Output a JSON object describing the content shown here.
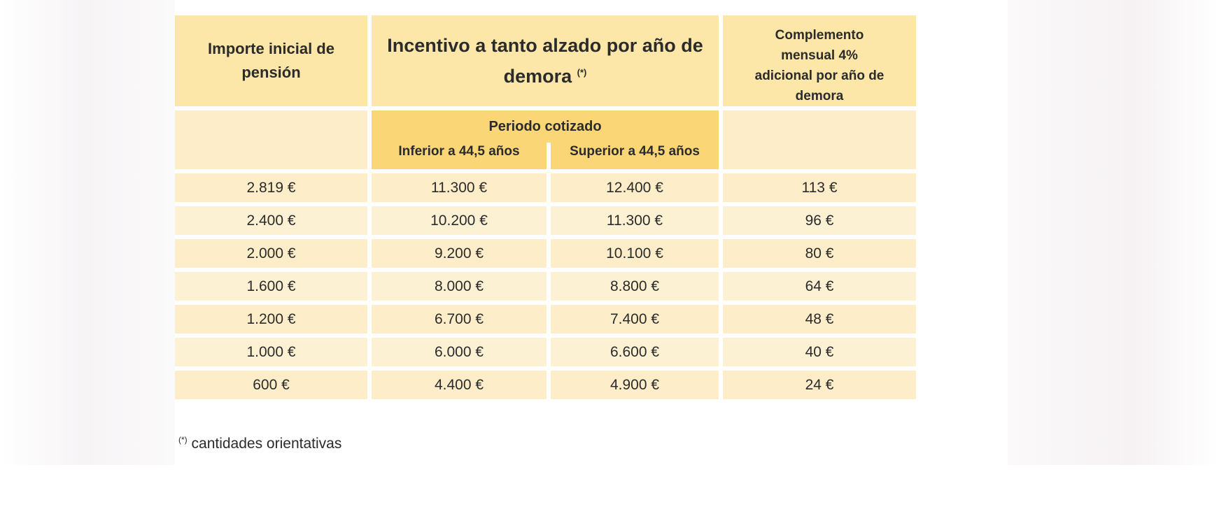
{
  "header": {
    "col1": "Importe inicial de pensión",
    "col2": "Incentivo a tanto alzado por año de demora",
    "col2_mark": "(*)",
    "col4": "Complemento mensual 4% adicional por año de demora"
  },
  "subheader": {
    "periodo": "Periodo cotizado",
    "inferior": "Inferior a 44,5 años",
    "superior": "Superior a 44,5 años"
  },
  "rows": [
    {
      "importe": "2.819 €",
      "inferior": "11.300 €",
      "superior": "12.400 €",
      "complemento": "113 €"
    },
    {
      "importe": "2.400 €",
      "inferior": "10.200 €",
      "superior": "11.300 €",
      "complemento": "96 €"
    },
    {
      "importe": "2.000 €",
      "inferior": "9.200 €",
      "superior": "10.100 €",
      "complemento": "80 €"
    },
    {
      "importe": "1.600 €",
      "inferior": "8.000 €",
      "superior": "8.800 €",
      "complemento": "64 €"
    },
    {
      "importe": "1.200 €",
      "inferior": "6.700 €",
      "superior": "7.400 €",
      "complemento": "48 €"
    },
    {
      "importe": "1.000 €",
      "inferior": "6.000 €",
      "superior": "6.600 €",
      "complemento": "40 €"
    },
    {
      "importe": "600 €",
      "inferior": "4.400 €",
      "superior": "4.900 €",
      "complemento": "24 €"
    }
  ],
  "footnote": {
    "mark": "(*)",
    "text": "cantidades orientativas"
  },
  "colors": {
    "header": "#fce6a8",
    "periodo": "#fbd677",
    "row": "#fdeec9"
  }
}
